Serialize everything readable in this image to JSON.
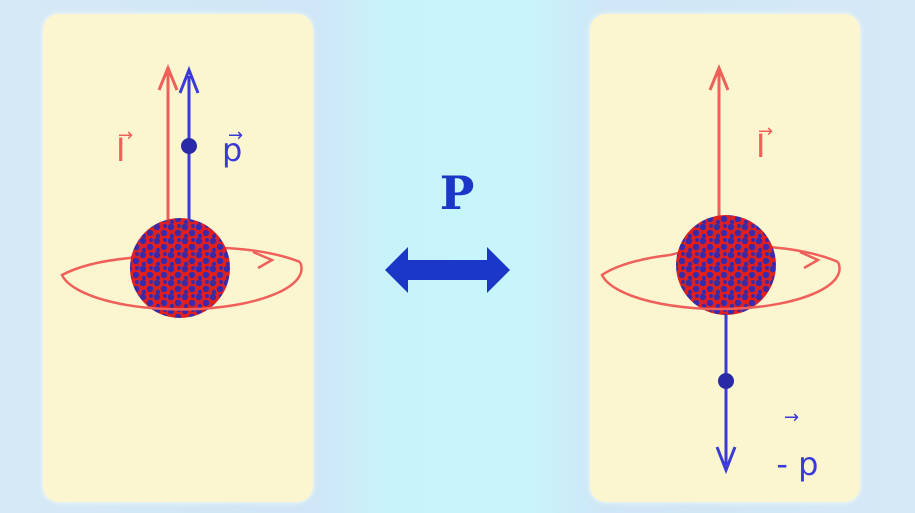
{
  "left_state": {
    "spin_label": "I",
    "momentum_label": "p"
  },
  "operator": {
    "label": "P"
  },
  "right_state": {
    "spin_label": "I",
    "momentum_label": "- p"
  },
  "colors": {
    "panel": "#fbf6cf",
    "spin_red": "#f0605a",
    "momentum_blue": "#3a3ad8",
    "operator_blue": "#1b37c8",
    "center_band": "#c8f4fc"
  }
}
